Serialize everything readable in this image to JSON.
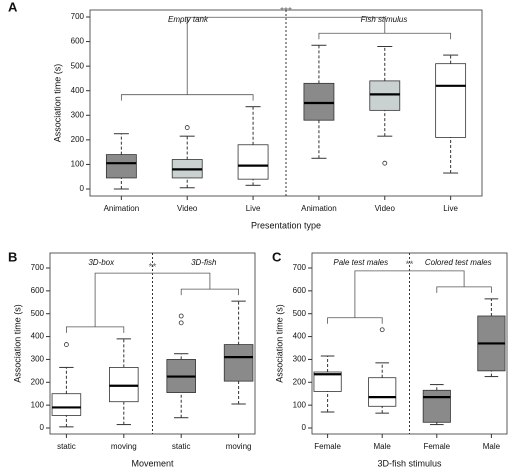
{
  "chart_data": [
    {
      "type": "box",
      "panel": "A",
      "xlabel": "Presentation type",
      "ylabel": "Association time (s)",
      "groups": [
        "Empty tank",
        "Fish stimulus"
      ],
      "annotation": "***",
      "categories": [
        "Animation",
        "Video",
        "Live",
        "Animation",
        "Video",
        "Live"
      ],
      "ylim": [
        0,
        700
      ],
      "yticks": [
        0,
        100,
        200,
        300,
        400,
        500,
        600,
        700
      ],
      "boxes": [
        {
          "min": 0,
          "q1": 45,
          "median": 105,
          "q3": 140,
          "max": 225,
          "outliers": [],
          "color": "#8a8a8a"
        },
        {
          "min": 5,
          "q1": 45,
          "median": 80,
          "q3": 120,
          "max": 215,
          "outliers": [
            250
          ],
          "color": "#c9d1d1"
        },
        {
          "min": 15,
          "q1": 40,
          "median": 95,
          "q3": 180,
          "max": 335,
          "outliers": [],
          "color": "#ffffff"
        },
        {
          "min": 125,
          "q1": 280,
          "median": 350,
          "q3": 430,
          "max": 585,
          "outliers": [],
          "color": "#8a8a8a"
        },
        {
          "min": 215,
          "q1": 320,
          "median": 385,
          "q3": 440,
          "max": 580,
          "outliers": [
            105
          ],
          "color": "#c9d1d1"
        },
        {
          "min": 65,
          "q1": 210,
          "median": 420,
          "q3": 510,
          "max": 545,
          "outliers": [],
          "color": "#ffffff"
        }
      ]
    },
    {
      "type": "box",
      "panel": "B",
      "xlabel": "Movement",
      "ylabel": "Association time (s)",
      "groups": [
        "3D-box",
        "3D-fish"
      ],
      "annotation": "**",
      "categories": [
        "static",
        "moving",
        "static",
        "moving"
      ],
      "ylim": [
        0,
        700
      ],
      "yticks": [
        0,
        100,
        200,
        300,
        400,
        500,
        600,
        700
      ],
      "boxes": [
        {
          "min": 5,
          "q1": 55,
          "median": 90,
          "q3": 150,
          "max": 265,
          "outliers": [
            365
          ],
          "color": "#ffffff"
        },
        {
          "min": 15,
          "q1": 115,
          "median": 185,
          "q3": 265,
          "max": 390,
          "outliers": [],
          "color": "#ffffff"
        },
        {
          "min": 45,
          "q1": 155,
          "median": 225,
          "q3": 300,
          "max": 325,
          "outliers": [
            460,
            490
          ],
          "color": "#8a8a8a"
        },
        {
          "min": 105,
          "q1": 205,
          "median": 310,
          "q3": 365,
          "max": 555,
          "outliers": [],
          "color": "#8a8a8a"
        }
      ]
    },
    {
      "type": "box",
      "panel": "C",
      "xlabel": "3D-fish stimulus",
      "ylabel": "Association time (s)",
      "groups": [
        "Pale test males",
        "Colored test males"
      ],
      "annotation": "**",
      "categories": [
        "Female",
        "Male",
        "Female",
        "Male"
      ],
      "ylim": [
        0,
        700
      ],
      "yticks": [
        0,
        100,
        200,
        300,
        400,
        500,
        600,
        700
      ],
      "boxes": [
        {
          "min": 70,
          "q1": 160,
          "median": 235,
          "q3": 245,
          "max": 315,
          "outliers": [],
          "color": "#ffffff"
        },
        {
          "min": 65,
          "q1": 95,
          "median": 135,
          "q3": 220,
          "max": 285,
          "outliers": [
            430
          ],
          "color": "#ffffff"
        },
        {
          "min": 15,
          "q1": 25,
          "median": 135,
          "q3": 165,
          "max": 190,
          "outliers": [],
          "color": "#8a8a8a"
        },
        {
          "min": 225,
          "q1": 250,
          "median": 370,
          "q3": 490,
          "max": 565,
          "outliers": [],
          "color": "#8a8a8a"
        }
      ]
    }
  ]
}
